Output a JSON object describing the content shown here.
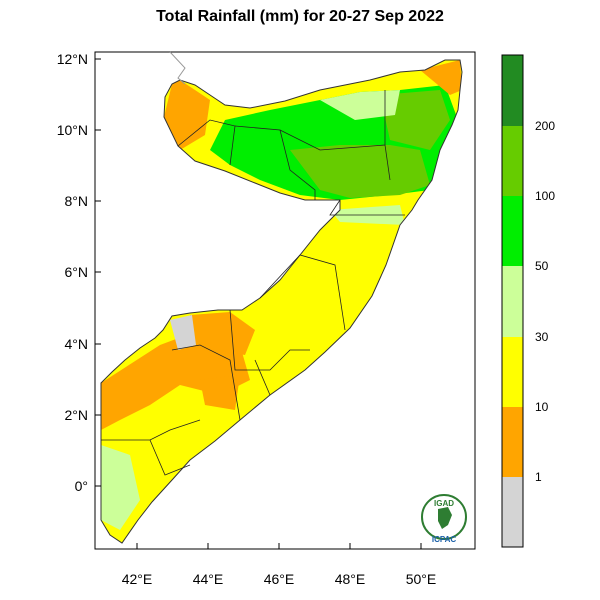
{
  "title": "Total Rainfall (mm) for 20-27 Sep 2022",
  "map": {
    "lat_ticks": [
      "12°N",
      "10°N",
      "8°N",
      "6°N",
      "4°N",
      "2°N",
      "0°"
    ],
    "lon_ticks": [
      "42°E",
      "44°E",
      "46°E",
      "48°E",
      "50°E"
    ]
  },
  "legend": {
    "bins": [
      {
        "range": "< 1",
        "color": "#d4d4d4"
      },
      {
        "range": "1-10",
        "color": "#ffa500"
      },
      {
        "range": "10-30",
        "color": "#ffff00"
      },
      {
        "range": "30-50",
        "color": "#ccff99"
      },
      {
        "range": "50-100",
        "color": "#00ee00"
      },
      {
        "range": "100-200",
        "color": "#66cc00"
      },
      {
        "range": "> 200",
        "color": "#228b22"
      }
    ],
    "labels": [
      "1",
      "10",
      "30",
      "50",
      "100",
      "200"
    ]
  },
  "logo": {
    "top_text": "IGAD",
    "bottom_text": "ICPAC"
  }
}
